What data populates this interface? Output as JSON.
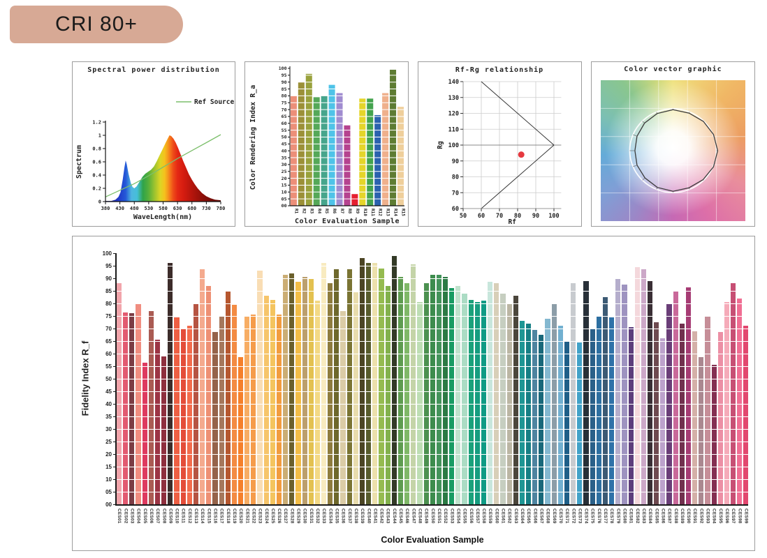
{
  "badge": {
    "label": "CRI 80+",
    "bg": "#D7A995",
    "text_color": "#1A1A1A"
  },
  "chart_data": [
    {
      "id": "spectral",
      "type": "area",
      "title": "Spectral power distribution",
      "legend": "Ref Source",
      "ylabel": "Spectrum",
      "xlabel": "WaveLength(nm)",
      "xlim": [
        380,
        780
      ],
      "ylim": [
        0,
        1.2
      ],
      "xticks": [
        380,
        430,
        480,
        530,
        580,
        630,
        680,
        730,
        780
      ],
      "yticks": [
        "0",
        "0.2",
        "0.4",
        "0.6",
        "0.8",
        "1",
        "1.2"
      ],
      "ref_color": "#7CBF6B",
      "grid": false,
      "legend_position": "upper-right",
      "spectrum": [
        [
          380,
          0.01
        ],
        [
          400,
          0.01
        ],
        [
          415,
          0.03
        ],
        [
          425,
          0.07
        ],
        [
          432,
          0.14
        ],
        [
          440,
          0.34
        ],
        [
          446,
          0.52
        ],
        [
          450,
          0.62
        ],
        [
          454,
          0.56
        ],
        [
          460,
          0.42
        ],
        [
          468,
          0.28
        ],
        [
          474,
          0.22
        ],
        [
          480,
          0.2
        ],
        [
          488,
          0.23
        ],
        [
          498,
          0.3
        ],
        [
          508,
          0.37
        ],
        [
          518,
          0.42
        ],
        [
          528,
          0.45
        ],
        [
          538,
          0.48
        ],
        [
          548,
          0.53
        ],
        [
          558,
          0.61
        ],
        [
          568,
          0.7
        ],
        [
          578,
          0.79
        ],
        [
          588,
          0.88
        ],
        [
          596,
          0.95
        ],
        [
          602,
          1.0
        ],
        [
          608,
          0.99
        ],
        [
          616,
          0.95
        ],
        [
          624,
          0.89
        ],
        [
          632,
          0.81
        ],
        [
          640,
          0.72
        ],
        [
          650,
          0.61
        ],
        [
          660,
          0.51
        ],
        [
          670,
          0.41
        ],
        [
          680,
          0.33
        ],
        [
          690,
          0.26
        ],
        [
          700,
          0.2
        ],
        [
          715,
          0.13
        ],
        [
          730,
          0.08
        ],
        [
          745,
          0.05
        ],
        [
          760,
          0.03
        ],
        [
          780,
          0.02
        ]
      ],
      "ref_line": [
        [
          380,
          0.07
        ],
        [
          430,
          0.17
        ],
        [
          480,
          0.27
        ],
        [
          530,
          0.39
        ],
        [
          580,
          0.52
        ],
        [
          630,
          0.65
        ],
        [
          680,
          0.77
        ],
        [
          730,
          0.89
        ],
        [
          780,
          1.01
        ]
      ],
      "gradient": [
        [
          0,
          "#201A70"
        ],
        [
          11,
          "#2038C8"
        ],
        [
          17.5,
          "#2458D8"
        ],
        [
          22.5,
          "#4FB6E0"
        ],
        [
          27.5,
          "#45BFD8"
        ],
        [
          32.5,
          "#2FA349"
        ],
        [
          37.5,
          "#58B03A"
        ],
        [
          42.5,
          "#9CC32F"
        ],
        [
          47.5,
          "#DCD525"
        ],
        [
          51.25,
          "#F5C21D"
        ],
        [
          53.75,
          "#F59E1C"
        ],
        [
          56.25,
          "#F4741C"
        ],
        [
          58.75,
          "#EE4C18"
        ],
        [
          62.5,
          "#E42814"
        ],
        [
          67.5,
          "#D61C10"
        ],
        [
          75,
          "#B5150C"
        ],
        [
          85,
          "#8A0F08"
        ],
        [
          100,
          "#5E0A06"
        ]
      ]
    },
    {
      "id": "cri",
      "type": "bar",
      "ylabel": "Color Rendering Index R_a",
      "xlabel": "Color Evaluation Sample",
      "ylim": [
        0,
        100
      ],
      "yticks": [
        "00",
        "05",
        "10",
        "15",
        "20",
        "25",
        "30",
        "35",
        "40",
        "45",
        "50",
        "55",
        "60",
        "65",
        "70",
        "75",
        "80",
        "85",
        "90",
        "95",
        "100"
      ],
      "categories": [
        "R1",
        "R2",
        "R3",
        "R4",
        "R5",
        "R6",
        "R7",
        "R8",
        "R9",
        "R10",
        "R11",
        "R12",
        "R13",
        "R14",
        "R15"
      ],
      "values": [
        80,
        90,
        96,
        79,
        80,
        88,
        82,
        58.5,
        8.5,
        78,
        78,
        66,
        82,
        99,
        72
      ],
      "colors": [
        "#EC8F79",
        "#9B9038",
        "#99A13C",
        "#55A858",
        "#46A58C",
        "#4FC3E8",
        "#A08CD0",
        "#B5438F",
        "#E51F30",
        "#E5D52A",
        "#44A34E",
        "#2B62AE",
        "#EFB08C",
        "#5E7C33",
        "#EFCF9B"
      ],
      "grid": "white-overlay"
    },
    {
      "id": "rfrg",
      "type": "scatter",
      "title": "Rf-Rg relationship",
      "xlabel": "Rf",
      "ylabel": "Rg",
      "xlim": [
        50,
        104
      ],
      "ylim": [
        60,
        140
      ],
      "xticks": [
        50,
        60,
        70,
        80,
        90,
        100
      ],
      "yticks": [
        60,
        70,
        80,
        90,
        100,
        110,
        120,
        130,
        140
      ],
      "grid": true,
      "point": {
        "rf": 82,
        "rg": 94
      },
      "point_color": "#E6393F",
      "envelope": [
        [
          [
            60,
            140
          ],
          [
            100,
            100
          ]
        ],
        [
          [
            60,
            60
          ],
          [
            100,
            100
          ]
        ]
      ],
      "hline": 100
    },
    {
      "id": "vector",
      "type": "other",
      "title": "Color vector graphic",
      "reference_circle_radius": 1.0,
      "test_radii": [
        0.98,
        0.97,
        0.99,
        1.01,
        1.03,
        1.01,
        0.98,
        0.96,
        0.97,
        0.95,
        0.92,
        0.9,
        0.88,
        0.9,
        0.93,
        0.96
      ],
      "polygon_color": "#3B3B3B",
      "circle_color": "rgba(255,255,255,0.9)"
    },
    {
      "id": "fidelity",
      "type": "bar",
      "ylabel": "Fidelity Index R_f",
      "xlabel": "Color Evaluation Sample",
      "ylim": [
        0,
        100
      ],
      "yticks": [
        "00",
        "05",
        "10",
        "15",
        "20",
        "25",
        "30",
        "35",
        "40",
        "45",
        "50",
        "55",
        "60",
        "65",
        "70",
        "75",
        "80",
        "85",
        "90",
        "95",
        "100"
      ],
      "grid": "white-overlay",
      "categories": [
        "CES01",
        "CES02",
        "CES03",
        "CES04",
        "CES05",
        "CES06",
        "CES07",
        "CES08",
        "CES09",
        "CES10",
        "CES11",
        "CES12",
        "CES13",
        "CES14",
        "CES15",
        "CES16",
        "CES17",
        "CES18",
        "CES19",
        "CES20",
        "CES21",
        "CES22",
        "CES23",
        "CES24",
        "CES25",
        "CES26",
        "CES27",
        "CES28",
        "CES29",
        "CES30",
        "CES31",
        "CES32",
        "CES33",
        "CES34",
        "CES35",
        "CES36",
        "CES37",
        "CES38",
        "CES39",
        "CES40",
        "CES41",
        "CES42",
        "CES43",
        "CES44",
        "CES45",
        "CES46",
        "CES47",
        "CES48",
        "CES49",
        "CES50",
        "CES51",
        "CES52",
        "CES53",
        "CES54",
        "CES55",
        "CES56",
        "CES57",
        "CES58",
        "CES59",
        "CES60",
        "CES61",
        "CES62",
        "CES63",
        "CES64",
        "CES65",
        "CES66",
        "CES67",
        "CES68",
        "CES69",
        "CES70",
        "CES71",
        "CES72",
        "CES73",
        "CES74",
        "CES75",
        "CES76",
        "CES77",
        "CES78",
        "CES79",
        "CES80",
        "CES81",
        "CES82",
        "CES83",
        "CES84",
        "CES85",
        "CES86",
        "CES87",
        "CES88",
        "CES89",
        "CES90",
        "CES91",
        "CES92",
        "CES93",
        "CES94",
        "CES95",
        "CES96",
        "CES97",
        "CES98",
        "CES99"
      ],
      "values": [
        88,
        76.5,
        76,
        80,
        56.5,
        77,
        65.5,
        59,
        96,
        74.5,
        70,
        71,
        80,
        93.5,
        87,
        68.5,
        75,
        85,
        79.5,
        58.5,
        75,
        75.5,
        93,
        83,
        81.5,
        75.5,
        91.5,
        92,
        88.5,
        90.5,
        90,
        81,
        96,
        88,
        93.5,
        77,
        93.5,
        84.5,
        98,
        96,
        96,
        94,
        87,
        99,
        90.5,
        88,
        95.5,
        80.5,
        88,
        91.5,
        91.5,
        90.5,
        86,
        87,
        84,
        81.5,
        80.5,
        81,
        88.5,
        88,
        84,
        80,
        83,
        73,
        72,
        69.5,
        67.5,
        74,
        80,
        71,
        65,
        88,
        64.5,
        89,
        70,
        75,
        82.5,
        74.5,
        90,
        87.5,
        70.5,
        94.5,
        93.5,
        89,
        72.5,
        66,
        80,
        85,
        72,
        86.5,
        69,
        58.5,
        75,
        55.5,
        68.5,
        80.5,
        88,
        82,
        71
      ],
      "colors": [
        "#F2A5AB",
        "#E25A70",
        "#7C3C44",
        "#F08D80",
        "#DE3A5F",
        "#AA5B53",
        "#9C3545",
        "#8E2F3E",
        "#3C2C2A",
        "#EE5F43",
        "#E44D39",
        "#F26C4C",
        "#B65442",
        "#F4AA8E",
        "#EE9074",
        "#95634A",
        "#A5775C",
        "#B6572F",
        "#F38B43",
        "#F5802B",
        "#F7AD64",
        "#F59C4A",
        "#F9DDB4",
        "#F6C56B",
        "#F4C45E",
        "#F29C3E",
        "#CBAD74",
        "#6B602C",
        "#F3BD46",
        "#BB9F6C",
        "#E3C150",
        "#F3D985",
        "#F8EBC0",
        "#8E7C3E",
        "#6E682C",
        "#DBCCA6",
        "#7A7433",
        "#E8DCAC",
        "#4B4524",
        "#585C2C",
        "#ECE0AC",
        "#95BB50",
        "#82B14C",
        "#333A27",
        "#5E9C50",
        "#7FB868",
        "#C4D4A8",
        "#BEDEB4",
        "#4C9150",
        "#3D8C4D",
        "#43935A",
        "#2B7A44",
        "#189B62",
        "#BFE2CC",
        "#ABDCC4",
        "#1AA17B",
        "#169D80",
        "#0F9B85",
        "#C8E6DC",
        "#D8CFB8",
        "#C6CEC0",
        "#BBB6A4",
        "#4B463C",
        "#1E9694",
        "#167F85",
        "#4E84A0",
        "#19687A",
        "#84B8D0",
        "#8C9DA8",
        "#72B0D0",
        "#1F5F88",
        "#C8CBCF",
        "#42A2C8",
        "#283038",
        "#2A6089",
        "#2D6FA1",
        "#3C5A74",
        "#2F72A8",
        "#B5AECC",
        "#9E93C0",
        "#5C3D7C",
        "#F4D8DC",
        "#CCA8C8",
        "#3A2F35",
        "#6E4A50",
        "#BCA2CC",
        "#6A3E78",
        "#C9699A",
        "#71304E",
        "#A63C74",
        "#D4B0A8",
        "#AA8890",
        "#C68E98",
        "#842F52",
        "#EC8FA5",
        "#F5ABB9",
        "#C74F74",
        "#F06E93",
        "#E2486F"
      ]
    }
  ]
}
